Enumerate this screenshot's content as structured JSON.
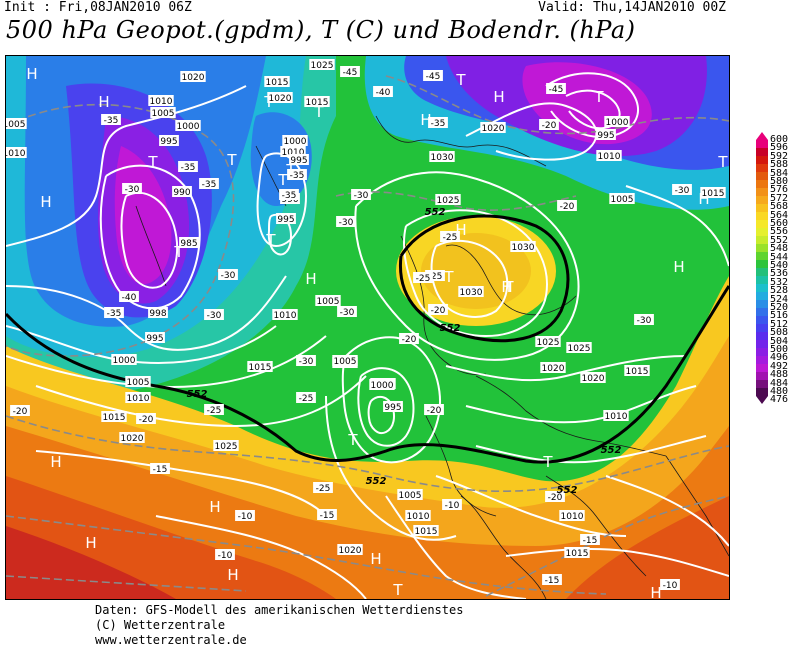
{
  "header": {
    "init": "Init : Fri,08JAN2010 06Z",
    "valid": "Valid: Thu,14JAN2010 00Z",
    "title": "500 hPa Geopot.(gpdm), T (C) und Bodendr. (hPa)"
  },
  "footer": {
    "line1": "Daten: GFS-Modell des amerikanischen Wetterdienstes",
    "line2": "(C) Wetterzentrale",
    "line3": "www.wetterzentrale.de"
  },
  "colorbar": {
    "labels": [
      "600",
      "596",
      "592",
      "588",
      "584",
      "580",
      "576",
      "572",
      "568",
      "564",
      "560",
      "556",
      "552",
      "548",
      "544",
      "540",
      "536",
      "532",
      "528",
      "524",
      "520",
      "516",
      "512",
      "508",
      "504",
      "500",
      "496",
      "492",
      "488",
      "484",
      "480",
      "476"
    ],
    "colors": [
      "#e8007a",
      "#c80026",
      "#d4170c",
      "#e0390c",
      "#e35a0e",
      "#ec760f",
      "#f29118",
      "#f6a91c",
      "#f8c21e",
      "#fad824",
      "#f5e82a",
      "#e5f02e",
      "#c8ec2c",
      "#9ae22a",
      "#5ed42e",
      "#2cc43c",
      "#22c07a",
      "#1cc2a6",
      "#1cc0cc",
      "#22ace0",
      "#2a8ee6",
      "#3270ea",
      "#3a56ee",
      "#4640f0",
      "#5a2cee",
      "#7424ea",
      "#8c1ee4",
      "#a41ade",
      "#bc18d4",
      "#a012b0",
      "#76107c",
      "#4c0a50"
    ]
  },
  "map": {
    "pressure_systems": [
      {
        "type": "T",
        "label": "T"
      },
      {
        "type": "T",
        "label": "T"
      },
      {
        "type": "T",
        "label": "T"
      },
      {
        "type": "T",
        "label": "T"
      },
      {
        "type": "T",
        "label": "T"
      },
      {
        "type": "T",
        "label": "T"
      },
      {
        "type": "T",
        "label": "T"
      },
      {
        "type": "T",
        "label": "T"
      },
      {
        "type": "T",
        "label": "T"
      },
      {
        "type": "T",
        "label": "T"
      },
      {
        "type": "T",
        "label": "T"
      },
      {
        "type": "T",
        "label": "T"
      },
      {
        "type": "T",
        "label": "T"
      },
      {
        "type": "T",
        "label": "T"
      },
      {
        "type": "T",
        "label": "T"
      },
      {
        "type": "T",
        "label": "T"
      },
      {
        "type": "H",
        "label": "H"
      },
      {
        "type": "H",
        "label": "H"
      },
      {
        "type": "H",
        "label": "H"
      },
      {
        "type": "H",
        "label": "H"
      },
      {
        "type": "H",
        "label": "H"
      },
      {
        "type": "H",
        "label": "H"
      },
      {
        "type": "H",
        "label": "H"
      },
      {
        "type": "H",
        "label": "H"
      },
      {
        "type": "H",
        "label": "H"
      },
      {
        "type": "H",
        "label": "H"
      },
      {
        "type": "H",
        "label": "H"
      },
      {
        "type": "H",
        "label": "H"
      },
      {
        "type": "H",
        "label": "H"
      },
      {
        "type": "H",
        "label": "H"
      },
      {
        "type": "H",
        "label": "H"
      },
      {
        "type": "H",
        "label": "H"
      }
    ],
    "isobar_labels": [
      "1020",
      "1015",
      "1025",
      "1005",
      "1010",
      "1010",
      "1005",
      "1000",
      "995",
      "990",
      "985",
      "998",
      "995",
      "1000",
      "1005",
      "1010",
      "1015",
      "1020",
      "1025",
      "1020",
      "1015",
      "1010",
      "1000",
      "995",
      "990",
      "995",
      "1005",
      "1010",
      "1015",
      "1020",
      "1025",
      "1030",
      "1030",
      "1030",
      "1025",
      "1025",
      "1020",
      "1020",
      "1015",
      "1010",
      "1005",
      "1000",
      "995",
      "1000",
      "1005",
      "1010",
      "1015",
      "1020",
      "1010",
      "1015",
      "1020",
      "995",
      "1000",
      "1010",
      "1005",
      "1015"
    ],
    "temperature_labels": [
      "-45",
      "-45",
      "-40",
      "-35",
      "-35",
      "-35",
      "-30",
      "-35",
      "-25",
      "-25",
      "-30",
      "-30",
      "-30",
      "-35",
      "-40",
      "-35",
      "-30",
      "-25",
      "-30",
      "-20",
      "-25",
      "-20",
      "-25",
      "-30",
      "-20",
      "-20",
      "-20",
      "-15",
      "-25",
      "-15",
      "-10",
      "-15",
      "-10",
      "-10",
      "-15",
      "-10",
      "-20",
      "-20",
      "-35",
      "-20",
      "-30",
      "-45",
      "-30"
    ],
    "geopotential_552": [
      "552",
      "552",
      "552",
      "552",
      "552",
      "552"
    ]
  }
}
